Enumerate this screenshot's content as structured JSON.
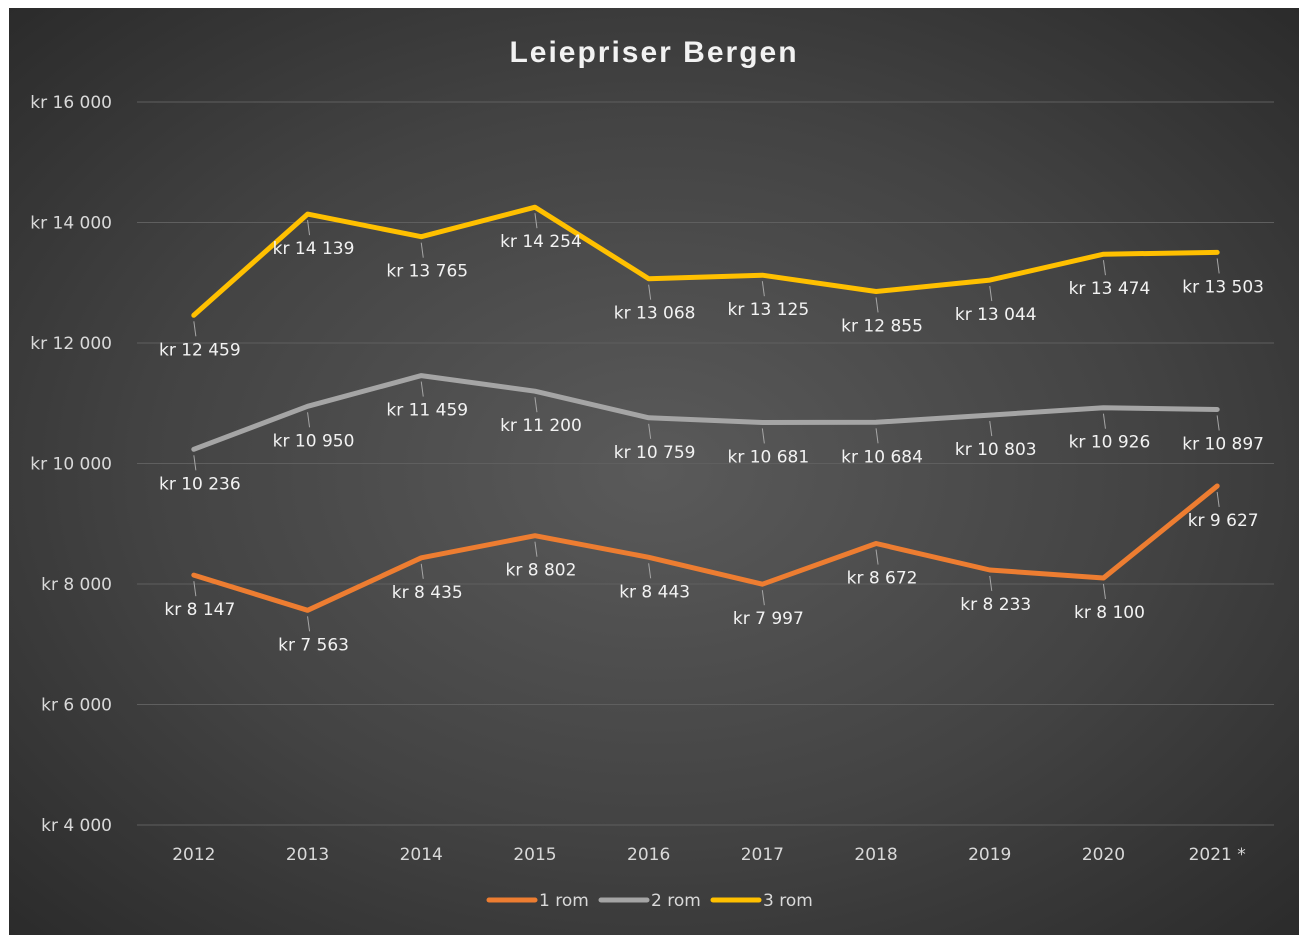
{
  "chart_data": {
    "type": "line",
    "title": "Leiepriser Bergen",
    "categories": [
      "2012",
      "2013",
      "2014",
      "2015",
      "2016",
      "2017",
      "2018",
      "2019",
      "2020",
      "2021 *"
    ],
    "ylim": [
      4000,
      16000
    ],
    "yticks": [
      4000,
      6000,
      8000,
      10000,
      12000,
      14000,
      16000
    ],
    "ytick_labels": [
      "kr 4 000",
      "kr 6 000",
      "kr 8 000",
      "kr 10 000",
      "kr 12 000",
      "kr 14 000",
      "kr 16 000"
    ],
    "grid": true,
    "legend_position": "bottom",
    "series": [
      {
        "name": "1 rom",
        "color": "#ed7d31",
        "values": [
          8147,
          7563,
          8435,
          8802,
          8443,
          7997,
          8672,
          8233,
          8100,
          9627
        ],
        "labels": [
          "kr 8 147",
          "kr 7 563",
          "kr 8 435",
          "kr 8 802",
          "kr 8 443",
          "kr 7 997",
          "kr 8 672",
          "kr 8 233",
          "kr 8 100",
          "kr 9 627"
        ]
      },
      {
        "name": "2 rom",
        "color": "#a5a5a5",
        "values": [
          10236,
          10950,
          11459,
          11200,
          10759,
          10681,
          10684,
          10803,
          10926,
          10897
        ],
        "labels": [
          "kr 10 236",
          "kr 10 950",
          "kr 11 459",
          "kr 11 200",
          "kr 10 759",
          "kr 10 681",
          "kr 10 684",
          "kr 10 803",
          "kr 10 926",
          "kr 10 897"
        ]
      },
      {
        "name": "3 rom",
        "color": "#ffc000",
        "values": [
          12459,
          14139,
          13765,
          14254,
          13068,
          13125,
          12855,
          13044,
          13474,
          13503
        ],
        "labels": [
          "kr 12 459",
          "kr 14 139",
          "kr 13 765",
          "kr 14 254",
          "kr 13 068",
          "kr 13 125",
          "kr 12 855",
          "kr 13 044",
          "kr 13 474",
          "kr 13 503"
        ]
      }
    ]
  }
}
